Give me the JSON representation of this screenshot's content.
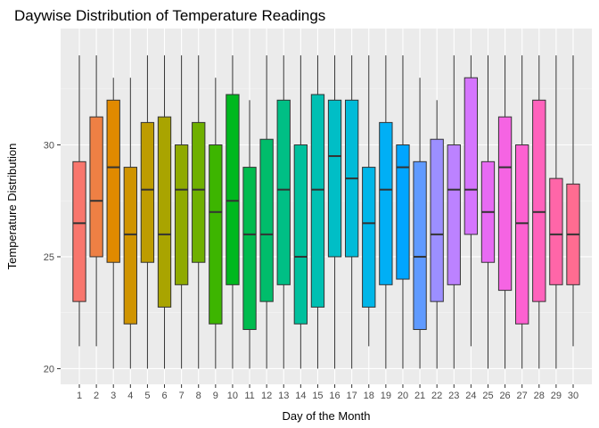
{
  "chart_data": {
    "type": "boxplot",
    "title": "Daywise Distribution of Temperature Readings",
    "xlabel": "Day of the Month",
    "ylabel": "Temperature Distribution",
    "ylim": [
      19.3,
      35.2
    ],
    "y_ticks": [
      20,
      25,
      30
    ],
    "grid": true,
    "legend": "none",
    "categories": [
      "1",
      "2",
      "3",
      "4",
      "5",
      "6",
      "7",
      "8",
      "9",
      "10",
      "11",
      "12",
      "13",
      "14",
      "15",
      "16",
      "17",
      "18",
      "19",
      "20",
      "21",
      "22",
      "23",
      "24",
      "25",
      "26",
      "27",
      "28",
      "29",
      "30"
    ],
    "boxes": [
      {
        "min": 21,
        "q1": 23,
        "median": 26.5,
        "q3": 29.25,
        "max": 34,
        "color": "#F8766D"
      },
      {
        "min": 21,
        "q1": 25,
        "median": 27.5,
        "q3": 31.25,
        "max": 34,
        "color": "#EE8044"
      },
      {
        "min": 20,
        "q1": 24.75,
        "median": 29,
        "q3": 32,
        "max": 33,
        "color": "#E18A00"
      },
      {
        "min": 20,
        "q1": 22,
        "median": 26,
        "q3": 29,
        "max": 33,
        "color": "#D09400"
      },
      {
        "min": 20,
        "q1": 24.75,
        "median": 28,
        "q3": 31,
        "max": 34,
        "color": "#BE9C00"
      },
      {
        "min": 20,
        "q1": 22.75,
        "median": 26,
        "q3": 31.25,
        "max": 34,
        "color": "#A9A400"
      },
      {
        "min": 20,
        "q1": 23.75,
        "median": 28,
        "q3": 30,
        "max": 34,
        "color": "#8FAA00"
      },
      {
        "min": 20,
        "q1": 24.75,
        "median": 28,
        "q3": 31,
        "max": 34,
        "color": "#6FB000"
      },
      {
        "min": 20,
        "q1": 22,
        "median": 27,
        "q3": 30,
        "max": 33,
        "color": "#3DB500"
      },
      {
        "min": 20,
        "q1": 23.75,
        "median": 27.5,
        "q3": 32.25,
        "max": 34,
        "color": "#00B81F"
      },
      {
        "min": 20,
        "q1": 21.75,
        "median": 26,
        "q3": 29,
        "max": 32,
        "color": "#00BB4E"
      },
      {
        "min": 20,
        "q1": 23,
        "median": 26,
        "q3": 30.25,
        "max": 34,
        "color": "#00BD6B"
      },
      {
        "min": 20,
        "q1": 23.75,
        "median": 28,
        "q3": 32,
        "max": 34,
        "color": "#00BF85"
      },
      {
        "min": 20,
        "q1": 22,
        "median": 25,
        "q3": 30,
        "max": 34,
        "color": "#00C09D"
      },
      {
        "min": 20,
        "q1": 22.75,
        "median": 28,
        "q3": 32.25,
        "max": 34,
        "color": "#00C0B2"
      },
      {
        "min": 20,
        "q1": 25,
        "median": 29.5,
        "q3": 32,
        "max": 34,
        "color": "#00BEC6"
      },
      {
        "min": 20,
        "q1": 25,
        "median": 28.5,
        "q3": 32,
        "max": 34,
        "color": "#00BBD8"
      },
      {
        "min": 21,
        "q1": 22.75,
        "median": 26.5,
        "q3": 29,
        "max": 34,
        "color": "#00B6E8"
      },
      {
        "min": 20,
        "q1": 23.75,
        "median": 28,
        "q3": 31,
        "max": 34,
        "color": "#00AFF5"
      },
      {
        "min": 20,
        "q1": 24,
        "median": 29,
        "q3": 30,
        "max": 34,
        "color": "#00A5FF"
      },
      {
        "min": 20,
        "q1": 21.75,
        "median": 25,
        "q3": 29.25,
        "max": 33,
        "color": "#5F9AFF"
      },
      {
        "min": 20,
        "q1": 23,
        "median": 26,
        "q3": 30.25,
        "max": 32,
        "color": "#9C8FFF"
      },
      {
        "min": 20,
        "q1": 23.75,
        "median": 28,
        "q3": 30,
        "max": 34,
        "color": "#BC82FF"
      },
      {
        "min": 21,
        "q1": 26,
        "median": 28,
        "q3": 33,
        "max": 34,
        "color": "#D575FE"
      },
      {
        "min": 20,
        "q1": 24.75,
        "median": 27,
        "q3": 29.25,
        "max": 34,
        "color": "#E76BF3"
      },
      {
        "min": 20,
        "q1": 23.5,
        "median": 29,
        "q3": 31.25,
        "max": 34,
        "color": "#F564E3"
      },
      {
        "min": 20,
        "q1": 22,
        "median": 26.5,
        "q3": 30,
        "max": 34,
        "color": "#FD61D1"
      },
      {
        "min": 20,
        "q1": 23,
        "median": 27,
        "q3": 32,
        "max": 34,
        "color": "#FF62BC"
      },
      {
        "min": 20,
        "q1": 23.75,
        "median": 26,
        "q3": 28.5,
        "max": 34,
        "color": "#FF66A8"
      },
      {
        "min": 21,
        "q1": 23.75,
        "median": 26,
        "q3": 28.25,
        "max": 34,
        "color": "#FF6C91"
      }
    ],
    "colors": {
      "panel_background": "#EBEBEB",
      "grid_major": "#FFFFFF",
      "grid_minor": "#F5F5F5",
      "box_outline": "#333333"
    }
  }
}
